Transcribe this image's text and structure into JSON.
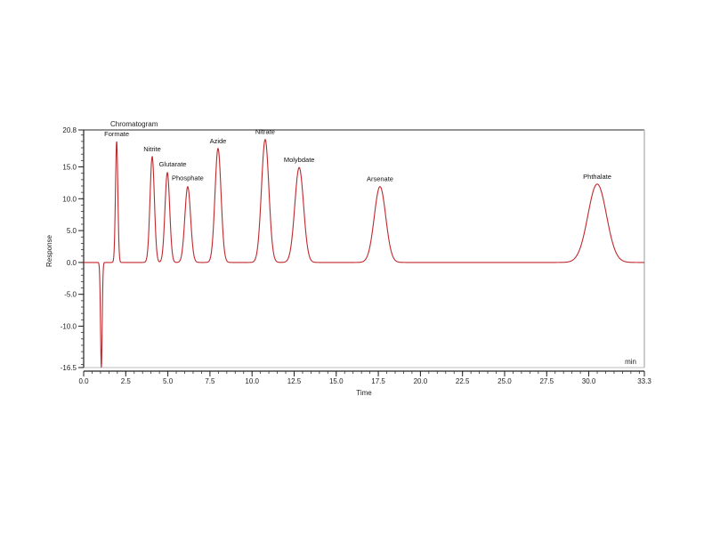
{
  "chart_data": {
    "type": "line",
    "title": "Chromatogram",
    "xlabel": "Time",
    "ylabel": "Response",
    "x_unit_label": "min",
    "xlim": [
      0.0,
      33.3
    ],
    "ylim": [
      -16.5,
      20.8
    ],
    "x_ticks": [
      "0.0",
      "2.5",
      "5.0",
      "7.5",
      "10.0",
      "12.5",
      "15.0",
      "17.5",
      "20.0",
      "22.5",
      "25.0",
      "27.5",
      "30.0",
      "33.3"
    ],
    "x_tick_values": [
      0,
      2.5,
      5,
      7.5,
      10,
      12.5,
      15,
      17.5,
      20,
      22.5,
      25,
      27.5,
      30,
      33.3
    ],
    "y_ticks": [
      "20.8",
      "15.0",
      "10.0",
      "5.0",
      "0.0",
      "-5.0",
      "-10.0",
      "-16.5"
    ],
    "y_tick_values": [
      20.8,
      15,
      10,
      5,
      0,
      -5,
      -10,
      -16.5
    ],
    "grid": false,
    "line_color": "#c0282d",
    "system_dip": {
      "time": 1.05,
      "response": -16.5,
      "width": 0.05
    },
    "peaks": [
      {
        "name": "Formate",
        "time": 1.96,
        "response": 19.0,
        "width": 0.07
      },
      {
        "name": "Nitrite",
        "time": 4.07,
        "response": 16.6,
        "width": 0.13
      },
      {
        "name": "Glutarate",
        "time": 4.97,
        "response": 14.1,
        "width": 0.14
      },
      {
        "name": "Phosphate",
        "time": 6.18,
        "response": 11.9,
        "width": 0.17
      },
      {
        "name": "Azide",
        "time": 7.98,
        "response": 17.9,
        "width": 0.18
      },
      {
        "name": "Nitrate",
        "time": 10.78,
        "response": 19.3,
        "width": 0.22
      },
      {
        "name": "Molybdate",
        "time": 12.8,
        "response": 14.9,
        "width": 0.26
      },
      {
        "name": "Arsenate",
        "time": 17.6,
        "response": 11.9,
        "width": 0.34
      },
      {
        "name": "Phthalate",
        "time": 30.5,
        "response": 12.3,
        "width": 0.55
      }
    ]
  },
  "plot": {
    "title": "Chromatogram",
    "xlabel": "Time",
    "ylabel": "Response",
    "unit": "min"
  }
}
